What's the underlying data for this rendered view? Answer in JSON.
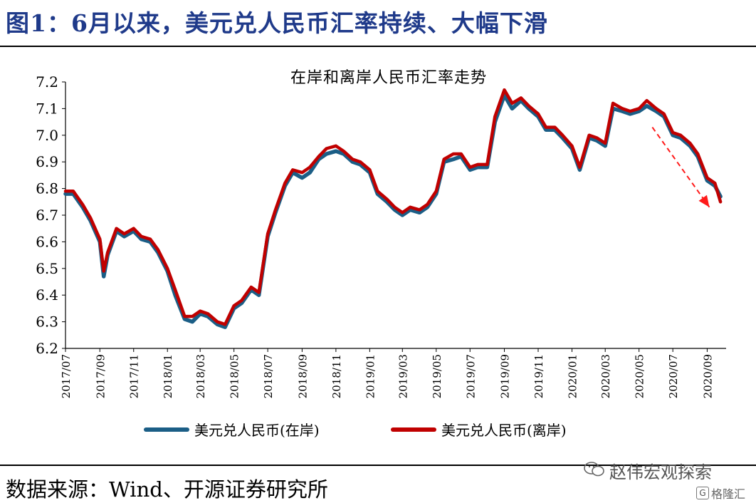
{
  "header": {
    "title": "图1：6月以来，美元兑人民币汇率持续、大幅下滑"
  },
  "footer": {
    "source": "数据来源：Wind、开源证券研究所"
  },
  "watermark": {
    "text": "赵伟宏观探索",
    "badge_text": "格隆汇",
    "badge_icon_text": "G"
  },
  "colors": {
    "onshore": "#1b5e86",
    "offshore": "#c00000",
    "title": "#1f3a8a",
    "arrow": "#ff1a1a"
  },
  "chart_data": {
    "type": "line",
    "title": "在岸和离岸人民币汇率走势",
    "xlabel": "",
    "ylabel": "",
    "ylim": [
      6.2,
      7.2
    ],
    "yticks": [
      "6.2",
      "6.3",
      "6.4",
      "6.5",
      "6.6",
      "6.7",
      "6.8",
      "6.9",
      "7.0",
      "7.1",
      "7.2"
    ],
    "xticks": [
      "2017/07",
      "2017/09",
      "2017/11",
      "2018/01",
      "2018/03",
      "2018/05",
      "2018/07",
      "2018/09",
      "2018/11",
      "2019/01",
      "2019/03",
      "2019/05",
      "2019/07",
      "2019/09",
      "2019/11",
      "2020/01",
      "2020/03",
      "2020/05",
      "2020/07",
      "2020/09"
    ],
    "x": [
      "2017-07-01",
      "2017-07-15",
      "2017-08-01",
      "2017-08-15",
      "2017-09-01",
      "2017-09-08",
      "2017-09-15",
      "2017-10-01",
      "2017-10-15",
      "2017-11-01",
      "2017-11-15",
      "2017-12-01",
      "2017-12-15",
      "2018-01-01",
      "2018-01-15",
      "2018-02-01",
      "2018-02-15",
      "2018-03-01",
      "2018-03-15",
      "2018-04-01",
      "2018-04-15",
      "2018-05-01",
      "2018-05-15",
      "2018-06-01",
      "2018-06-15",
      "2018-07-01",
      "2018-07-15",
      "2018-08-01",
      "2018-08-15",
      "2018-09-01",
      "2018-09-15",
      "2018-10-01",
      "2018-10-15",
      "2018-11-01",
      "2018-11-15",
      "2018-12-01",
      "2018-12-15",
      "2019-01-01",
      "2019-01-15",
      "2019-02-01",
      "2019-02-15",
      "2019-03-01",
      "2019-03-15",
      "2019-04-01",
      "2019-04-15",
      "2019-05-01",
      "2019-05-15",
      "2019-06-01",
      "2019-06-15",
      "2019-07-01",
      "2019-07-15",
      "2019-08-01",
      "2019-08-15",
      "2019-09-01",
      "2019-09-15",
      "2019-10-01",
      "2019-10-15",
      "2019-11-01",
      "2019-11-15",
      "2019-12-01",
      "2019-12-15",
      "2020-01-01",
      "2020-01-15",
      "2020-02-01",
      "2020-02-15",
      "2020-03-01",
      "2020-03-15",
      "2020-04-01",
      "2020-04-15",
      "2020-05-01",
      "2020-05-15",
      "2020-06-01",
      "2020-06-15",
      "2020-07-01",
      "2020-07-15",
      "2020-08-01",
      "2020-08-15",
      "2020-09-01",
      "2020-09-15",
      "2020-09-25"
    ],
    "series": [
      {
        "name": "美元兑人民币(在岸)",
        "values": [
          6.78,
          6.78,
          6.73,
          6.68,
          6.6,
          6.47,
          6.55,
          6.64,
          6.62,
          6.64,
          6.61,
          6.6,
          6.56,
          6.49,
          6.4,
          6.31,
          6.3,
          6.33,
          6.32,
          6.29,
          6.28,
          6.35,
          6.37,
          6.42,
          6.4,
          6.62,
          6.71,
          6.81,
          6.86,
          6.84,
          6.86,
          6.91,
          6.93,
          6.94,
          6.93,
          6.9,
          6.89,
          6.86,
          6.78,
          6.75,
          6.72,
          6.7,
          6.72,
          6.71,
          6.73,
          6.78,
          6.9,
          6.91,
          6.92,
          6.87,
          6.88,
          6.88,
          7.05,
          7.15,
          7.1,
          7.13,
          7.1,
          7.07,
          7.02,
          7.02,
          6.99,
          6.95,
          6.87,
          6.99,
          6.98,
          6.96,
          7.1,
          7.09,
          7.08,
          7.09,
          7.11,
          7.09,
          7.07,
          7.0,
          6.99,
          6.96,
          6.92,
          6.83,
          6.81,
          6.77
        ]
      },
      {
        "name": "美元兑人民币(离岸)",
        "values": [
          6.79,
          6.79,
          6.74,
          6.69,
          6.61,
          6.49,
          6.56,
          6.65,
          6.63,
          6.65,
          6.62,
          6.61,
          6.57,
          6.5,
          6.42,
          6.32,
          6.32,
          6.34,
          6.33,
          6.3,
          6.29,
          6.36,
          6.38,
          6.43,
          6.41,
          6.63,
          6.72,
          6.82,
          6.87,
          6.86,
          6.88,
          6.92,
          6.95,
          6.96,
          6.94,
          6.91,
          6.9,
          6.87,
          6.79,
          6.76,
          6.73,
          6.71,
          6.73,
          6.72,
          6.74,
          6.79,
          6.91,
          6.93,
          6.93,
          6.88,
          6.89,
          6.89,
          7.07,
          7.17,
          7.12,
          7.14,
          7.11,
          7.08,
          7.03,
          7.03,
          7.0,
          6.96,
          6.88,
          7.0,
          6.99,
          6.97,
          7.12,
          7.1,
          7.09,
          7.1,
          7.13,
          7.1,
          7.08,
          7.01,
          7.0,
          6.97,
          6.93,
          6.84,
          6.82,
          6.75
        ]
      }
    ],
    "annotation": {
      "type": "arrow",
      "from": [
        "2020-05-25",
        7.03
      ],
      "to": [
        "2020-09-05",
        6.73
      ]
    },
    "legend_position": "bottom"
  }
}
